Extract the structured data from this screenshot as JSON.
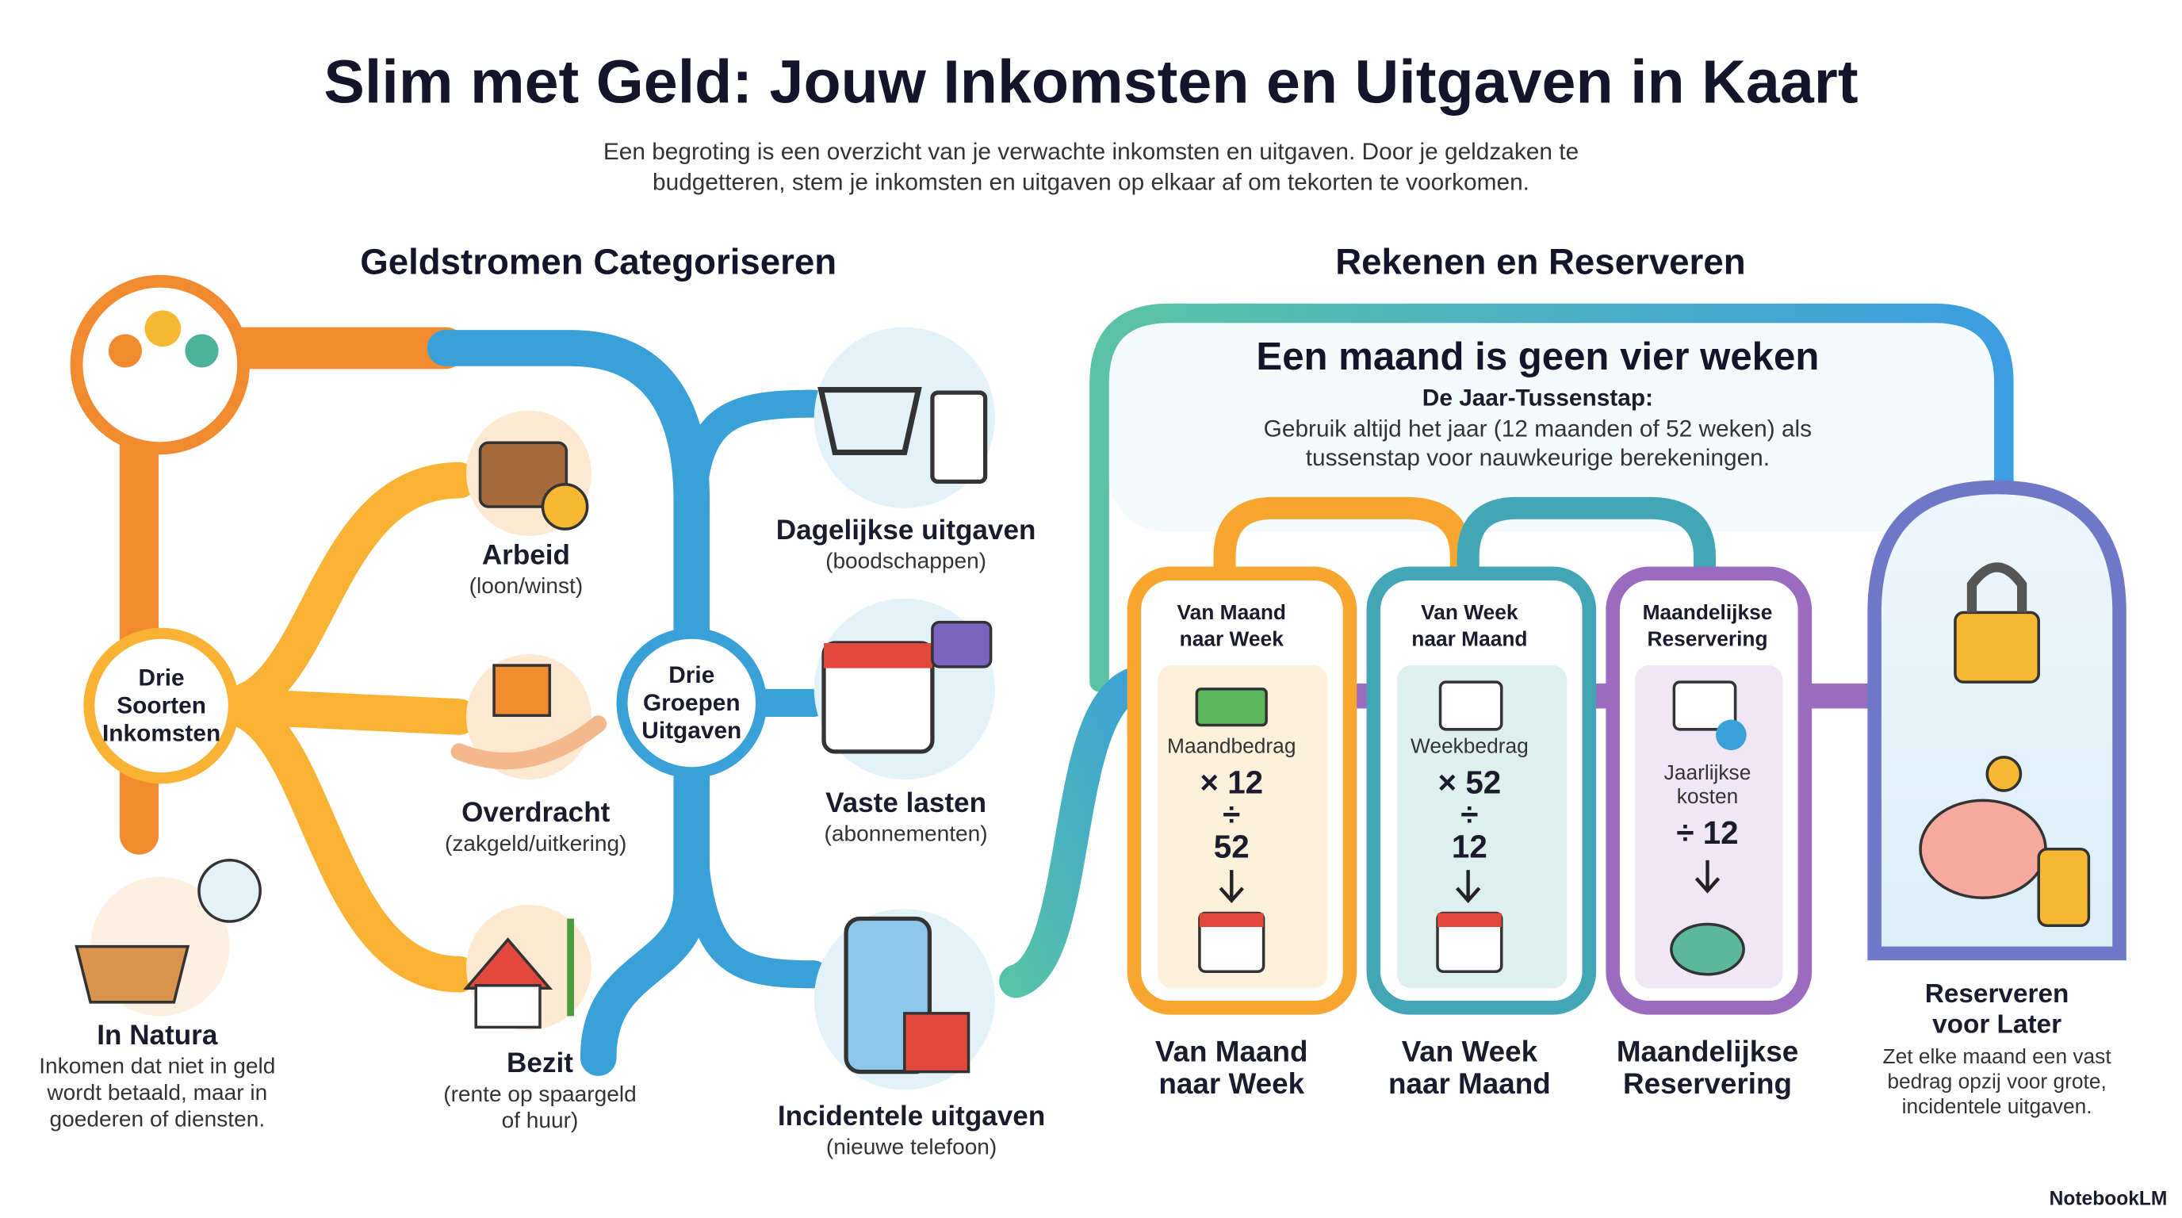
{
  "header": {
    "title": "Slim met Geld: Jouw Inkomsten en Uitgaven in Kaart",
    "subtitle": [
      "Een begroting is een overzicht van je verwachte inkomsten en uitgaven. Door je geldzaken te",
      "budgetteren, stem je inkomsten en uitgaven op elkaar af om tekorten te voorkomen."
    ]
  },
  "sections": [
    {
      "heading": "Geldstromen Categoriseren"
    },
    {
      "heading": "Rekenen en Reserveren"
    }
  ],
  "income": {
    "hub": [
      "Drie",
      "Soorten",
      "Inkomsten"
    ],
    "items": [
      {
        "label": "Arbeid",
        "note": [
          "(loon/winst)"
        ]
      },
      {
        "label": "Overdracht",
        "note": [
          "(zakgeld/uitkering)"
        ]
      },
      {
        "label": "Bezit",
        "note": [
          "(rente op spaargeld",
          "of huur)"
        ]
      },
      {
        "label": "In Natura",
        "note": [
          "Inkomen dat niet in geld",
          "wordt betaald, maar in",
          "goederen of diensten."
        ]
      }
    ]
  },
  "expenses": {
    "hub": [
      "Drie",
      "Groepen",
      "Uitgaven"
    ],
    "items": [
      {
        "label": "Dagelijkse uitgaven",
        "note": [
          "(boodschappen)"
        ]
      },
      {
        "label": "Vaste lasten",
        "note": [
          "(abonnementen)"
        ]
      },
      {
        "label": "Incidentele uitgaven",
        "note": [
          "(nieuwe telefoon)"
        ]
      }
    ]
  },
  "calculation": {
    "title": "Een maand is geen vier weken",
    "subtitle": "De Jaar-Tussenstap:",
    "text": [
      "Gebruik altijd het jaar (12 maanden of 52 weken) als",
      "tussenstap voor nauwkeurige berekeningen."
    ]
  },
  "cards": [
    {
      "header": [
        "Van Maand",
        "naar Week"
      ],
      "input": [
        "Maandbedrag"
      ],
      "formula": [
        "× 12",
        "÷",
        "52"
      ],
      "caption": [
        "Van Maand",
        "naar Week"
      ]
    },
    {
      "header": [
        "Van Week",
        "naar Maand"
      ],
      "input": [
        "Weekbedrag"
      ],
      "formula": [
        "× 52",
        "÷",
        "12"
      ],
      "caption": [
        "Van Week",
        "naar Maand"
      ]
    },
    {
      "header": [
        "Maandelijkse",
        "Reservering"
      ],
      "input": [
        "Jaarlijkse",
        "kosten"
      ],
      "formula": [
        "÷ 12"
      ],
      "caption": [
        "Maandelijkse",
        "Reservering"
      ]
    }
  ],
  "savings": {
    "title": [
      "Reserveren",
      "voor Later"
    ],
    "text": [
      "Zet elke maand een vast",
      "bedrag opzij voor grote,",
      "incidentele uitgaven."
    ]
  },
  "footer": {
    "brand": "NotebookLM"
  }
}
